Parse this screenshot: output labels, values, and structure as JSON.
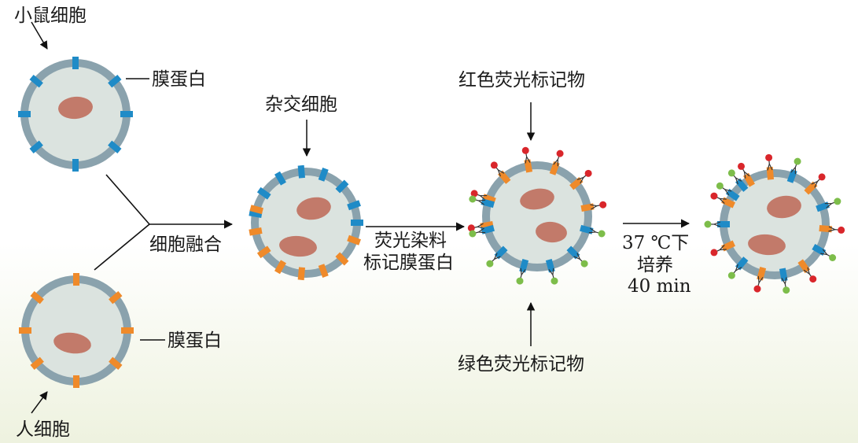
{
  "labels": {
    "mouse_cell": "小鼠细胞",
    "mouse_membrane_protein": "膜蛋白",
    "human_cell": "人细胞",
    "human_membrane_protein": "膜蛋白",
    "fusion": "细胞融合",
    "hybrid_cell": "杂交细胞",
    "stain_line1": "荧光染料",
    "stain_line2": "标记膜蛋白",
    "red_marker": "红色荧光标记物",
    "green_marker": "绿色荧光标记物",
    "incubate_line1": "37 ℃下",
    "incubate_line2": "培养",
    "incubate_line3": "40 min"
  },
  "colors": {
    "membrane": "#8aa2ad",
    "cytoplasm": "#dbe3df",
    "nucleus": "#c27a6a",
    "mouse_protein": "#1f8bc7",
    "human_protein": "#ef8a2a",
    "red_marker": "#d9262b",
    "green_marker": "#7dbd4a",
    "arrow": "#111111",
    "bg_gradient_top": "#ffffff",
    "bg_gradient_bottom": "#f1f4e5"
  }
}
